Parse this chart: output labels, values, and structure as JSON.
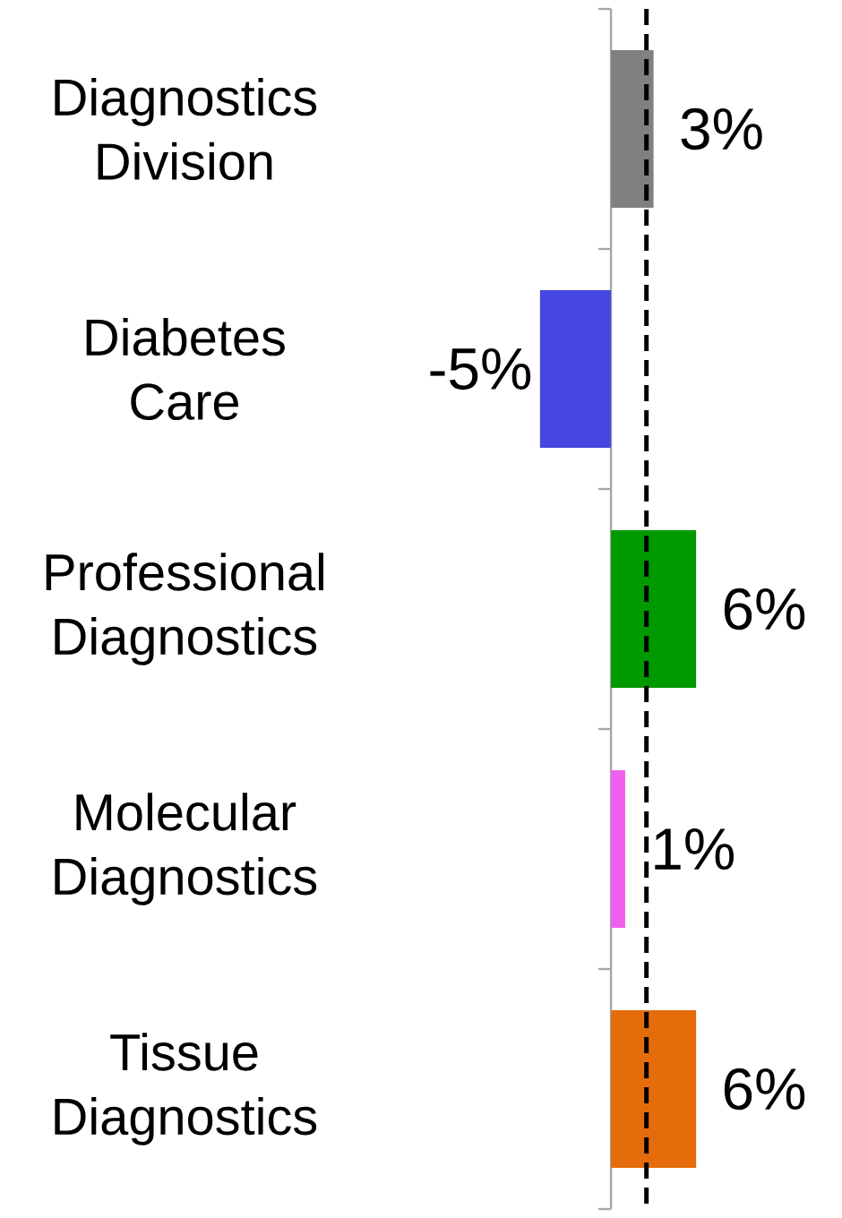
{
  "chart_data": {
    "type": "bar",
    "orientation": "horizontal",
    "categories": [
      "Diagnostics Division",
      "Diabetes Care",
      "Professional Diagnostics",
      "Molecular Diagnostics",
      "Tissue Diagnostics"
    ],
    "values": [
      3,
      -5,
      6,
      1,
      6
    ],
    "colors": [
      "#808080",
      "#4646e0",
      "#009900",
      "#f060f0",
      "#e46c0a"
    ],
    "value_labels": [
      "3%",
      "-5%",
      "6%",
      "1%",
      "6%"
    ],
    "tick_labels": "y",
    "ref_lines": [
      {
        "axis": "x",
        "value": 2.5,
        "color": "#000000",
        "line_style": "dashed"
      }
    ]
  }
}
